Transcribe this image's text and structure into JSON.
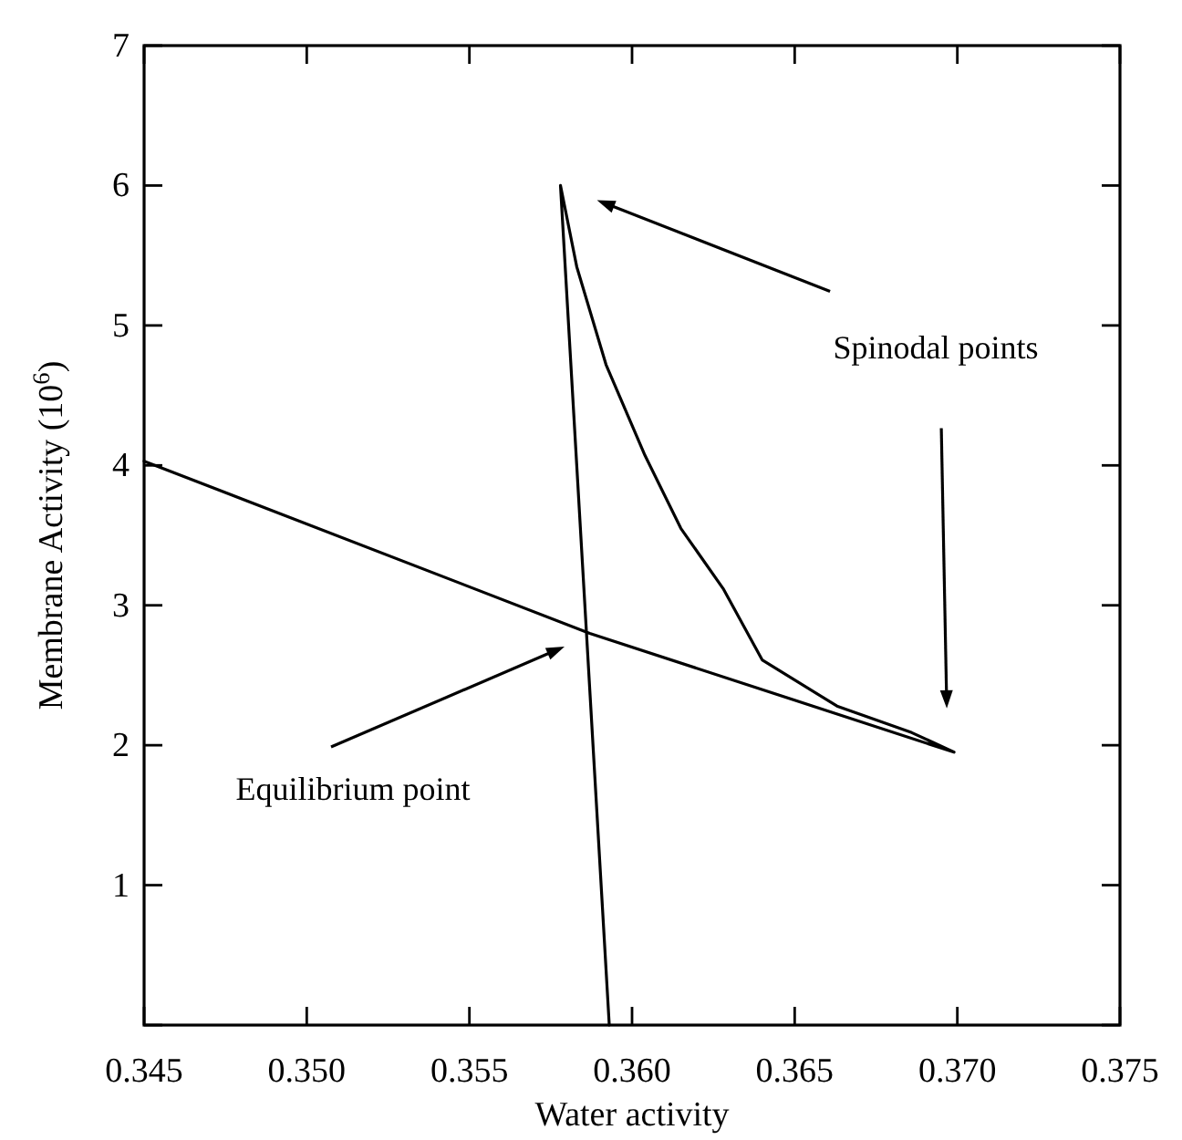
{
  "chart_data": {
    "type": "line",
    "xlabel": "Water activity",
    "ylabel": "Membrane Activity (10$^{6}$)",
    "xlim": [
      0.345,
      0.375
    ],
    "xticks": [
      0.345,
      {
        "value": 0.35,
        "label": "0.350"
      },
      0.355,
      {
        "value": 0.36,
        "label": "0.360"
      },
      0.365,
      {
        "value": 0.37,
        "label": "0.370"
      },
      0.375
    ],
    "ylim": [
      0,
      7
    ],
    "yticks": [
      {
        "value": 0,
        "label": null
      },
      1,
      2,
      3,
      4,
      5,
      6,
      7
    ],
    "series": [
      {
        "color": "#000000",
        "x": [
          0.345,
          0.3587,
          0.3699,
          0.3686,
          0.3663,
          0.364,
          0.3628,
          0.3615,
          0.3604,
          0.3592,
          0.3583,
          0.3578,
          0.3593
        ],
        "values": [
          4.03,
          2.8,
          1.95,
          2.09,
          2.28,
          2.61,
          3.12,
          3.55,
          4.07,
          4.72,
          5.42,
          6.0,
          0
        ]
      }
    ],
    "marker": "none",
    "line_style": "solid",
    "grid": false,
    "annotations": [
      "Spinodal points",
      "Equilibrium point"
    ]
  }
}
